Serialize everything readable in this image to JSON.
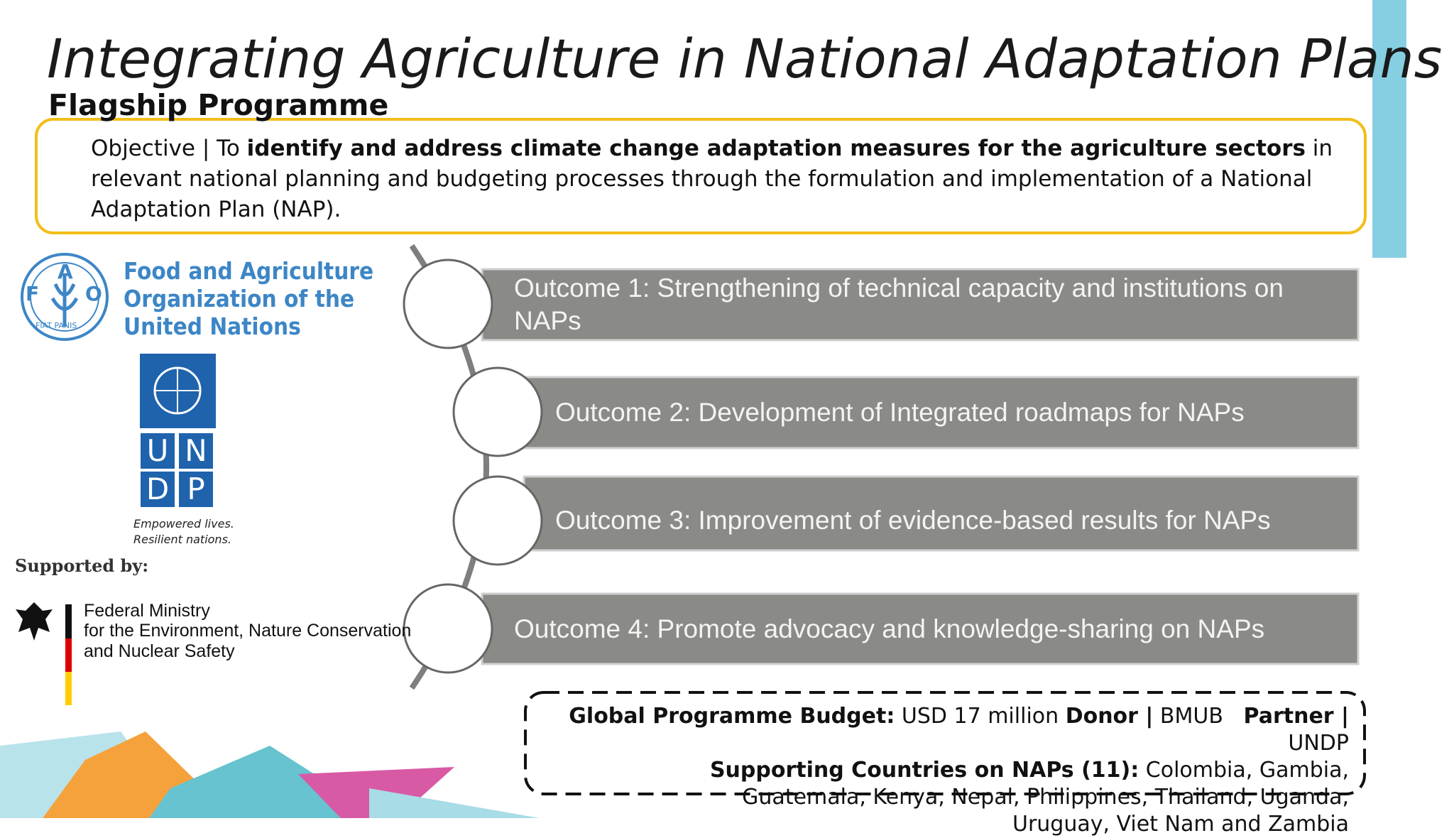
{
  "header": {
    "title": "Integrating Agriculture in National Adaptation Plans",
    "subtitle": "Flagship Programme"
  },
  "objective": {
    "parts": [
      "Objective | To ",
      "identify and address climate change adaptation measures for the agriculture sectors",
      " in relevant national planning and budgeting processes through the formulation and implementation of a National Adaptation Plan (NAP)."
    ]
  },
  "logos": {
    "fao": {
      "letters": [
        "F",
        "A",
        "O"
      ],
      "motto": "FIAT PANIS",
      "name": [
        "Food and Agriculture",
        "Organization of the",
        "United Nations"
      ]
    },
    "undp": {
      "letters": [
        "U",
        "N",
        "D",
        "P"
      ],
      "tagline": [
        "Empowered lives.",
        "Resilient nations."
      ]
    },
    "supported_by": "Supported by:",
    "ministry": [
      "Federal Ministry",
      "for the Environment, Nature Conservation",
      "and Nuclear Safety"
    ]
  },
  "outcomes": [
    "Outcome 1: Strengthening of technical capacity and institutions on NAPs",
    "Outcome 2: Development of  Integrated roadmaps for NAPs",
    "Outcome 3: Improvement of evidence-based results for NAPs",
    "Outcome 4: Promote advocacy and knowledge-sharing on NAPs"
  ],
  "budget": {
    "line1": [
      "Global Programme Budget:",
      " USD 17 million ",
      "Donor |",
      " BMUB   ",
      "Partner |",
      "  UNDP"
    ],
    "line2": [
      "Supporting Countries on NAPs (11):",
      " Colombia, Gambia, Guatemala, Kenya, Nepal, Philippines, Thailand, Uganda, Uruguay, Viet Nam and Zambia"
    ]
  }
}
